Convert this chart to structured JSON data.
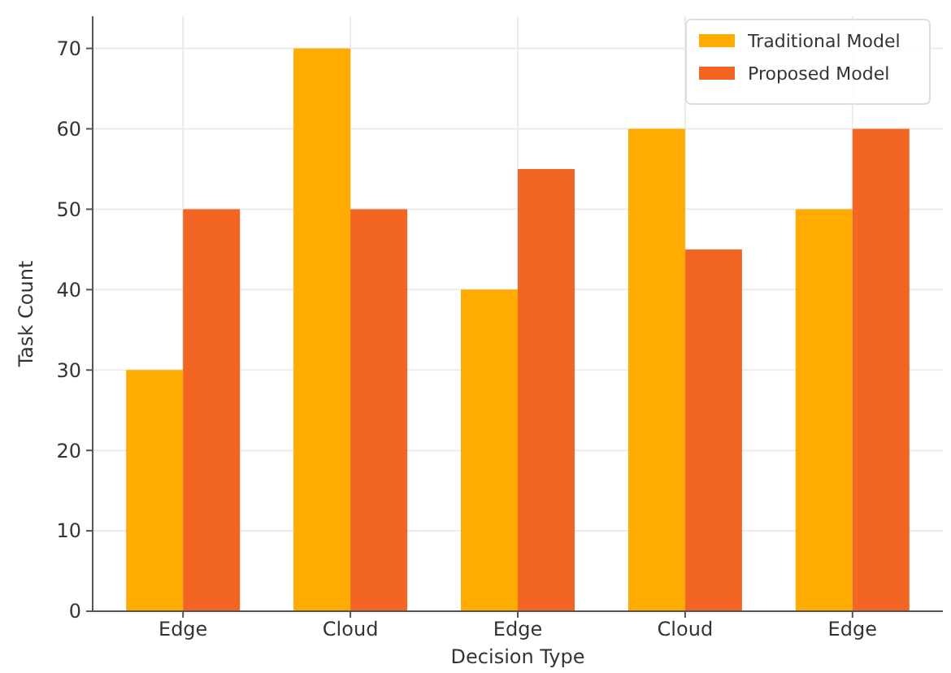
{
  "chart_data": {
    "type": "bar",
    "xlabel": "Decision Type",
    "ylabel": "Task Count",
    "categories": [
      "Edge",
      "Cloud",
      "Edge",
      "Cloud",
      "Edge"
    ],
    "series": [
      {
        "name": "Traditional Model",
        "color": "#ffab00",
        "values": [
          30,
          70,
          40,
          60,
          50
        ]
      },
      {
        "name": "Proposed Model",
        "color": "#f26522",
        "values": [
          50,
          50,
          55,
          45,
          60
        ]
      }
    ],
    "ylim": [
      0,
      74
    ],
    "yticks": [
      0,
      10,
      20,
      30,
      40,
      50,
      60,
      70
    ],
    "grid": true,
    "legend": "top right"
  }
}
